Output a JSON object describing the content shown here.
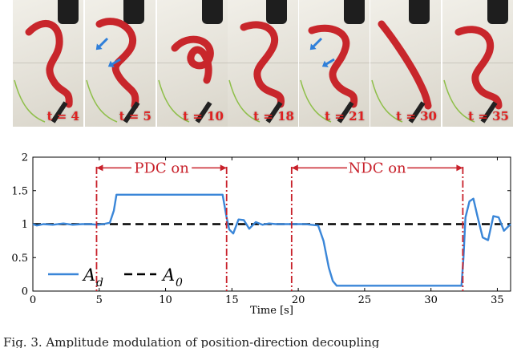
{
  "photo_panels": [
    {
      "label": "t = 4",
      "arrows": false
    },
    {
      "label": "t = 5",
      "arrows": true
    },
    {
      "label": "t = 10",
      "arrows": false
    },
    {
      "label": "t = 18",
      "arrows": false
    },
    {
      "label": "t = 21",
      "arrows": true
    },
    {
      "label": "t = 30",
      "arrows": false
    },
    {
      "label": "t = 35",
      "arrows": false
    }
  ],
  "colors": {
    "robot": "#c8262b",
    "arrow": "#2f7fd9",
    "label": "#e02020",
    "signal": "#3a86d8",
    "reference": "#000000",
    "marker": "#c8202a"
  },
  "chart_data": {
    "type": "line",
    "xlabel": "Time [s]",
    "ylabel": "",
    "xlim": [
      0,
      36
    ],
    "ylim": [
      0,
      2
    ],
    "xticks": [
      0,
      5,
      10,
      15,
      20,
      25,
      30,
      35
    ],
    "yticks": [
      0,
      0.5,
      1,
      1.5,
      2
    ],
    "ytick_labels": [
      "0",
      "0.5",
      "1",
      "1.5",
      "2"
    ],
    "series": [
      {
        "name": "A_d",
        "x": [
          0,
          0.3,
          0.8,
          1.5,
          2.3,
          3,
          3.7,
          4.3,
          4.9,
          5.3,
          5.8,
          6.1,
          6.3,
          9,
          12,
          14.3,
          14.6,
          14.8,
          15.1,
          15.5,
          15.9,
          16.3,
          16.8,
          17.3,
          17.8,
          18.3,
          18.8,
          19.5,
          20.5,
          21.5,
          21.9,
          22.3,
          22.6,
          22.9,
          23.2,
          25,
          28,
          30,
          32.3,
          32.45,
          32.6,
          32.9,
          33.2,
          33.5,
          33.9,
          34.3,
          34.7,
          35.1,
          35.5,
          36
        ],
        "y": [
          1.0,
          0.98,
          1.0,
          0.99,
          1.01,
          0.99,
          1.0,
          1.0,
          0.99,
          1.0,
          1.02,
          1.2,
          1.44,
          1.44,
          1.44,
          1.44,
          1.1,
          0.92,
          0.86,
          1.07,
          1.06,
          0.93,
          1.03,
          0.99,
          1.01,
          1.0,
          1.0,
          1.0,
          1.0,
          0.98,
          0.75,
          0.35,
          0.15,
          0.08,
          0.08,
          0.08,
          0.08,
          0.08,
          0.08,
          0.5,
          1.1,
          1.34,
          1.38,
          1.12,
          0.8,
          0.76,
          1.12,
          1.1,
          0.9,
          1.0
        ]
      },
      {
        "name": "A_0",
        "x": [
          0,
          36
        ],
        "y": [
          1,
          1
        ]
      }
    ],
    "vlines": [
      4.8,
      14.6,
      19.5,
      32.4
    ],
    "annotations": [
      {
        "text": "PDC on",
        "x_from": 4.8,
        "x_to": 14.6,
        "y": 1.84
      },
      {
        "text": "NDC on",
        "x_from": 19.5,
        "x_to": 32.4,
        "y": 1.84
      }
    ],
    "legend": {
      "placement": "bottom-left",
      "entries": [
        {
          "main": "A",
          "sub": "d"
        },
        {
          "main": "A",
          "sub": "0"
        }
      ]
    },
    "grid": false
  },
  "caption": "Fig. 3. Amplitude modulation of position-direction decoupling"
}
